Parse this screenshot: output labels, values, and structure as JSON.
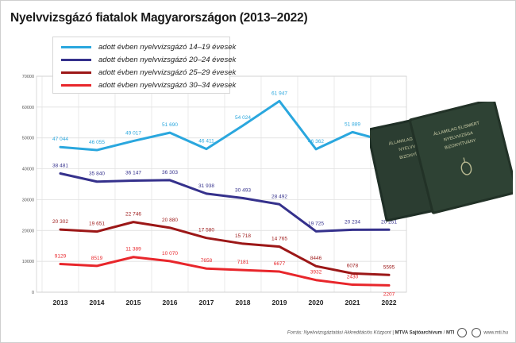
{
  "title": "Nyelvvizsgázó fiatalok Magyarországon (2013–2022)",
  "footer": {
    "source": "Forrás: Nyelvvizsgáztatási Akkreditációs Központ",
    "agency": "MTVA Sajtóarchívum",
    "org": "MTI",
    "url": "www.mti.hu"
  },
  "book_text": {
    "line1": "ÁLLAMILAG ELISMERT",
    "line2": "NYELVVIZSGA",
    "line3": "BIZONYÍTVÁNY"
  },
  "chart_data": {
    "type": "line",
    "x": [
      "2013",
      "2014",
      "2015",
      "2016",
      "2017",
      "2018",
      "2019",
      "2020",
      "2021",
      "2022"
    ],
    "ylim": [
      0,
      70000
    ],
    "yticks": [
      0,
      10000,
      20000,
      30000,
      40000,
      50000,
      60000,
      70000
    ],
    "grid": true,
    "legend_position": "top-left",
    "series": [
      {
        "name": "adott évben nyelvvizsgázó 14–19 évesek",
        "color": "#2aa7de",
        "values": [
          47044,
          46055,
          49017,
          51690,
          46411,
          54024,
          61947,
          46362,
          51889,
          48689
        ],
        "labels": [
          "47 044",
          "46 055",
          "49 017",
          "51 690",
          "46 411",
          "54 024",
          "61 947",
          "46 362",
          "51 889",
          "48 689"
        ]
      },
      {
        "name": "adott évben nyelvvizsgázó 20–24 évesek",
        "color": "#35318c",
        "values": [
          38481,
          35840,
          36147,
          36303,
          31938,
          30493,
          28492,
          19725,
          20234,
          20251
        ],
        "labels": [
          "38 481",
          "35 840",
          "36 147",
          "36 303",
          "31 938",
          "30 493",
          "28 492",
          "19 725",
          "20 234",
          "20 251"
        ]
      },
      {
        "name": "adott évben nyelvvizsgázó 25–29 évesek",
        "color": "#9c1717",
        "values": [
          20302,
          19651,
          22746,
          20880,
          17580,
          15718,
          14765,
          8446,
          6078,
          5595
        ],
        "labels": [
          "20 302",
          "19 651",
          "22 746",
          "20 880",
          "17 580",
          "15 718",
          "14 765",
          "8446",
          "6078",
          "5595"
        ]
      },
      {
        "name": "adott évben nyelvvizsgázó 30–34 évesek",
        "color": "#e8262b",
        "values": [
          9129,
          8519,
          11389,
          10070,
          7658,
          7181,
          6677,
          3932,
          2430,
          2207
        ],
        "labels": [
          "9129",
          "8519",
          "11 389",
          "10 070",
          "7658",
          "7181",
          "6677",
          "3932",
          "2430",
          "2207"
        ]
      }
    ]
  }
}
